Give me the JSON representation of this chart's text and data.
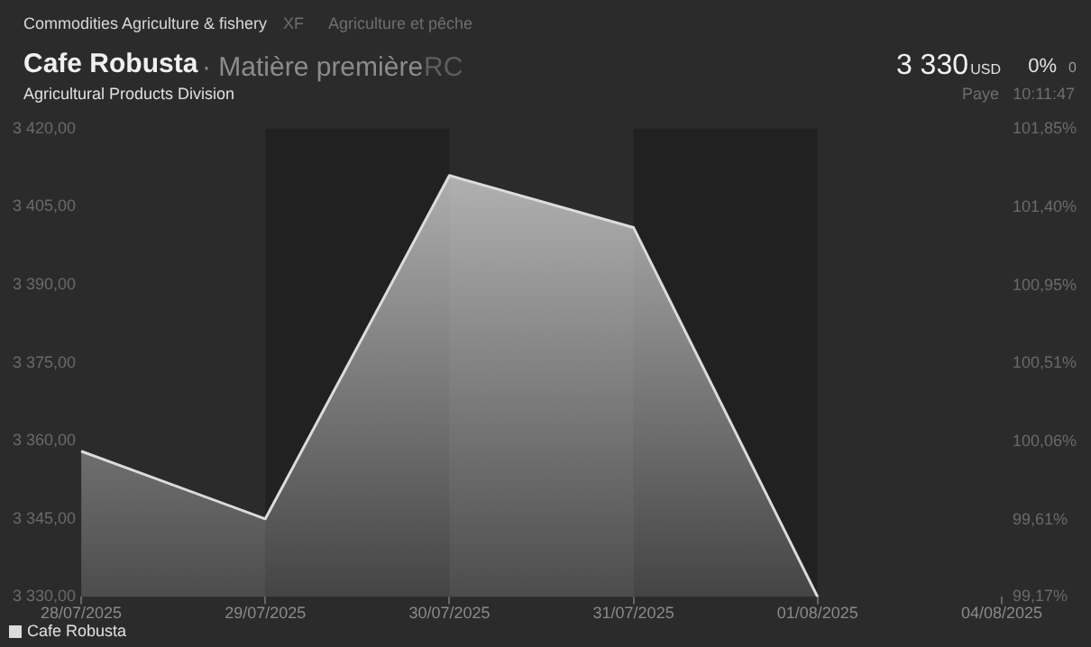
{
  "chart_data": {
    "type": "area",
    "title": "Cafe Robusta",
    "annotations": [
      "Commodities Agriculture & fishery",
      "XF",
      "Agriculture et pêche",
      "· Matière première",
      "RC",
      "Agricultural Products Division",
      "3 330",
      "USD",
      "0%",
      "0",
      "Paye",
      "10:11:47"
    ],
    "categories": [
      "28/07/2025",
      "29/07/2025",
      "30/07/2025",
      "31/07/2025",
      "01/08/2025",
      "04/08/2025"
    ],
    "series": [
      {
        "name": "Cafe Robusta",
        "color": "#dcdcdc",
        "values": [
          3358,
          3345,
          3411,
          3401,
          3330,
          null
        ]
      }
    ],
    "ylim": [
      3330,
      3420
    ],
    "yticks": [
      {
        "value": 3330,
        "label": "3 330,00"
      },
      {
        "value": 3345,
        "label": "3 345,00"
      },
      {
        "value": 3360,
        "label": "3 360,00"
      },
      {
        "value": 3375,
        "label": "3 375,00"
      },
      {
        "value": 3390,
        "label": "3 390,00"
      },
      {
        "value": 3405,
        "label": "3 405,00"
      },
      {
        "value": 3420,
        "label": "3 420,00"
      }
    ],
    "y2lim": [
      99.17,
      101.85
    ],
    "y2ticks": [
      {
        "value": 99.17,
        "label": "99,17%"
      },
      {
        "value": 99.61,
        "label": "99,61%"
      },
      {
        "value": 100.06,
        "label": "100,06%"
      },
      {
        "value": 100.51,
        "label": "100,51%"
      },
      {
        "value": 100.95,
        "label": "100,95%"
      },
      {
        "value": 101.4,
        "label": "101,40%"
      },
      {
        "value": 101.85,
        "label": "101,85%"
      }
    ],
    "bands": [
      {
        "axis": "x",
        "from": "29/07/2025",
        "to": "30/07/2025",
        "color": "#212121"
      },
      {
        "axis": "x",
        "from": "31/07/2025",
        "to": "01/08/2025",
        "color": "#212121"
      }
    ],
    "grid": false,
    "legend": "bottom left"
  }
}
